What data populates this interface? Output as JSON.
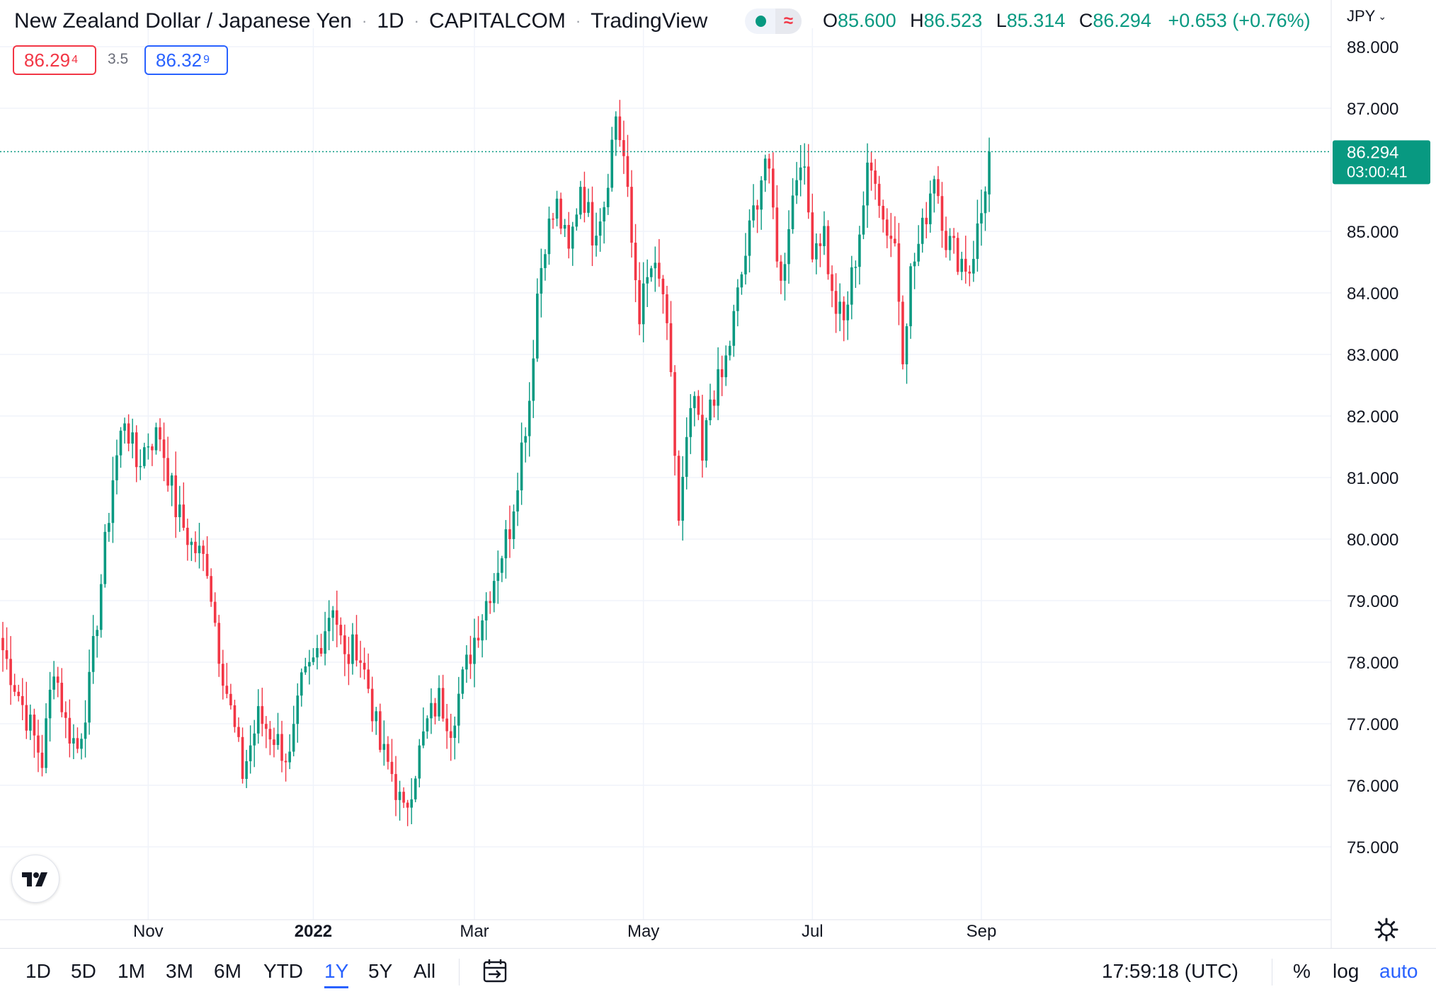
{
  "header": {
    "symbol": "New Zealand Dollar / Japanese Yen",
    "interval": "1D",
    "exchange": "CAPITALCOM",
    "source": "TradingView",
    "market_status_icon": "market-open-dot-icon",
    "delayed_icon": "wave-icon",
    "ohlc": {
      "o_label": "O",
      "o": "85.600",
      "h_label": "H",
      "h": "86.523",
      "l_label": "L",
      "l": "85.314",
      "c_label": "C",
      "c": "86.294",
      "change": "+0.653 (+0.76%)"
    },
    "currency": "JPY",
    "sell_price_main": "86.29",
    "sell_price_sup": "4",
    "spread": "3.5",
    "buy_price_main": "86.32",
    "buy_price_sup": "9"
  },
  "price_label": {
    "price": "86.294",
    "countdown": "03:00:41"
  },
  "toolbar": {
    "ranges": [
      "1D",
      "5D",
      "1M",
      "3M",
      "6M",
      "YTD",
      "1Y",
      "5Y",
      "All"
    ],
    "active_range": "1Y",
    "time": "17:59:18 (UTC)",
    "percent": "%",
    "log": "log",
    "auto": "auto"
  },
  "colors": {
    "up": "#089981",
    "down": "#f23645",
    "grid": "#f0f3fa",
    "accent": "#2962ff"
  },
  "chart_data": {
    "type": "candlestick",
    "y_ticks": [
      "88.000",
      "87.000",
      "85.000",
      "84.000",
      "83.000",
      "82.000",
      "81.000",
      "80.000",
      "79.000",
      "78.000",
      "77.000",
      "76.000",
      "75.000"
    ],
    "x_ticks": [
      {
        "label": "Nov",
        "t": 37
      },
      {
        "label": "2022",
        "t": 79
      },
      {
        "label": "Mar",
        "t": 120
      },
      {
        "label": "May",
        "t": 163
      },
      {
        "label": "Jul",
        "t": 206
      },
      {
        "label": "Sep",
        "t": 249
      }
    ],
    "ylim": [
      74.0,
      88.6
    ],
    "last_price": 86.294,
    "anchors": [
      [
        0,
        78.2
      ],
      [
        5,
        77.3
      ],
      [
        10,
        76.4
      ],
      [
        13,
        78.0
      ],
      [
        16,
        77.0
      ],
      [
        19,
        76.6
      ],
      [
        22,
        77.6
      ],
      [
        25,
        79.3
      ],
      [
        28,
        81.0
      ],
      [
        31,
        82.0
      ],
      [
        34,
        81.2
      ],
      [
        37,
        81.6
      ],
      [
        40,
        81.7
      ],
      [
        44,
        80.5
      ],
      [
        48,
        79.9
      ],
      [
        52,
        79.6
      ],
      [
        55,
        78.2
      ],
      [
        58,
        77.2
      ],
      [
        61,
        76.2
      ],
      [
        65,
        77.1
      ],
      [
        69,
        76.8
      ],
      [
        73,
        76.4
      ],
      [
        76,
        77.6
      ],
      [
        79,
        78.0
      ],
      [
        82,
        78.6
      ],
      [
        84,
        79.0
      ],
      [
        87,
        78.0
      ],
      [
        90,
        78.3
      ],
      [
        93,
        77.6
      ],
      [
        96,
        76.6
      ],
      [
        99,
        76.2
      ],
      [
        102,
        75.5
      ],
      [
        105,
        76.3
      ],
      [
        108,
        77.0
      ],
      [
        111,
        77.4
      ],
      [
        114,
        77.0
      ],
      [
        117,
        77.7
      ],
      [
        120,
        78.4
      ],
      [
        123,
        79.0
      ],
      [
        126,
        79.6
      ],
      [
        129,
        80.2
      ],
      [
        132,
        81.5
      ],
      [
        134,
        82.3
      ],
      [
        136,
        84.0
      ],
      [
        138,
        84.9
      ],
      [
        141,
        85.4
      ],
      [
        144,
        84.6
      ],
      [
        147,
        85.8
      ],
      [
        150,
        85.0
      ],
      [
        153,
        85.5
      ],
      [
        156,
        86.9
      ],
      [
        158,
        86.2
      ],
      [
        160,
        84.8
      ],
      [
        162,
        83.7
      ],
      [
        165,
        84.4
      ],
      [
        168,
        84.0
      ],
      [
        170,
        82.5
      ],
      [
        172,
        80.3
      ],
      [
        174,
        81.5
      ],
      [
        176,
        82.3
      ],
      [
        178,
        81.2
      ],
      [
        180,
        82.3
      ],
      [
        183,
        82.6
      ],
      [
        185,
        83.2
      ],
      [
        188,
        84.3
      ],
      [
        191,
        85.3
      ],
      [
        194,
        86.2
      ],
      [
        196,
        85.3
      ],
      [
        198,
        84.1
      ],
      [
        200,
        85.2
      ],
      [
        203,
        86.3
      ],
      [
        206,
        84.8
      ],
      [
        209,
        85.0
      ],
      [
        211,
        83.9
      ],
      [
        214,
        83.5
      ],
      [
        217,
        84.6
      ],
      [
        220,
        85.9
      ],
      [
        222,
        86.0
      ],
      [
        224,
        85.2
      ],
      [
        227,
        84.8
      ],
      [
        229,
        83.1
      ],
      [
        231,
        84.3
      ],
      [
        234,
        85.0
      ],
      [
        237,
        86.0
      ],
      [
        240,
        84.9
      ],
      [
        243,
        84.6
      ],
      [
        246,
        84.4
      ],
      [
        249,
        85.3
      ],
      [
        251,
        86.294
      ]
    ]
  }
}
